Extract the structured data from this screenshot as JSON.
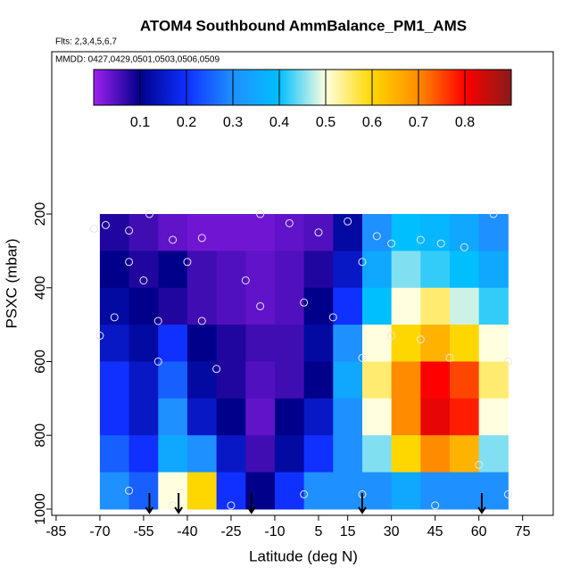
{
  "chart_data": {
    "type": "heatmap",
    "title": "ATOM4 Southbound AmmBalance_PM1_AMS",
    "subtitle": "Flts: 2,3,4,5,6,7",
    "annotation": "MMDD: 0427,0429,0501,0503,0506,0509",
    "xlabel": "Latitude (deg N)",
    "ylabel": "PSXC (mbar)",
    "xlim": [
      -86.5,
      85.5
    ],
    "ylim": [
      1017,
      -240
    ],
    "y_reversed": true,
    "xticks": [
      -85,
      -70,
      -55,
      -40,
      -25,
      -10,
      5,
      15,
      30,
      45,
      60,
      75
    ],
    "yticks": [
      200,
      400,
      600,
      800,
      1000
    ],
    "lat_edges": [
      -70,
      -60,
      -50,
      -40,
      -30,
      -20,
      -10,
      0,
      10,
      20,
      30,
      40,
      50,
      60,
      70
    ],
    "pressure_edges": [
      200,
      300,
      400,
      500,
      600,
      700,
      800,
      900,
      1000
    ],
    "values": [
      [
        0.08,
        0.06,
        0.04,
        0.03,
        0.03,
        0.03,
        0.04,
        0.05,
        0.12,
        0.3,
        0.4,
        0.38,
        0.35,
        0.3
      ],
      [
        0.1,
        0.08,
        0.1,
        0.06,
        0.05,
        0.04,
        0.05,
        0.08,
        0.15,
        0.35,
        0.45,
        0.42,
        0.4,
        0.35
      ],
      [
        0.12,
        0.1,
        0.08,
        0.06,
        0.05,
        0.04,
        0.05,
        0.1,
        0.2,
        0.4,
        0.5,
        0.55,
        0.48,
        0.42
      ],
      [
        0.15,
        0.12,
        0.2,
        0.1,
        0.08,
        0.06,
        0.06,
        0.12,
        0.3,
        0.5,
        0.6,
        0.65,
        0.6,
        0.5
      ],
      [
        0.2,
        0.15,
        0.25,
        0.12,
        0.08,
        0.05,
        0.06,
        0.1,
        0.35,
        0.55,
        0.7,
        0.8,
        0.75,
        0.55
      ],
      [
        0.2,
        0.15,
        0.3,
        0.15,
        0.1,
        0.04,
        0.1,
        0.15,
        0.3,
        0.5,
        0.7,
        0.82,
        0.78,
        0.5
      ],
      [
        0.25,
        0.2,
        0.35,
        0.3,
        0.15,
        0.06,
        0.12,
        0.2,
        0.3,
        0.45,
        0.6,
        0.7,
        0.65,
        0.45
      ],
      [
        0.3,
        0.25,
        0.5,
        0.6,
        0.2,
        0.1,
        0.2,
        0.3,
        0.3,
        0.3,
        0.35,
        0.3,
        0.3,
        0.3
      ]
    ],
    "clim": [
      0,
      0.9
    ],
    "cbticks": [
      0.1,
      0.2,
      0.3,
      0.4,
      0.5,
      0.6,
      0.7,
      0.8
    ],
    "colorscale": [
      "#a020f0",
      "#00008b",
      "#1030ff",
      "#1e90ff",
      "#00bfff",
      "#ffffe0",
      "#ffd700",
      "#ff8c00",
      "#ff0000",
      "#8b1a1a"
    ],
    "points": {
      "x": [
        -72,
        -68,
        -60,
        -53,
        -45,
        -35,
        -15,
        -5,
        5,
        15,
        25,
        30,
        40,
        47,
        55,
        65,
        -60,
        -55,
        -40,
        -20,
        0,
        20,
        -65,
        -50,
        -35,
        -15,
        10,
        30,
        40,
        -70,
        -50,
        -30,
        20,
        50,
        70,
        -60,
        -45,
        -25,
        0,
        20,
        45,
        70,
        60
      ],
      "y": [
        240,
        230,
        245,
        200,
        270,
        265,
        200,
        225,
        250,
        220,
        260,
        280,
        270,
        280,
        290,
        200,
        330,
        380,
        330,
        380,
        440,
        330,
        480,
        490,
        490,
        450,
        480,
        530,
        540,
        530,
        600,
        620,
        590,
        590,
        600,
        950,
        990,
        990,
        960,
        960,
        990,
        960,
        880
      ]
    },
    "arrows": [
      -53,
      -43,
      -18,
      20,
      61
    ]
  }
}
